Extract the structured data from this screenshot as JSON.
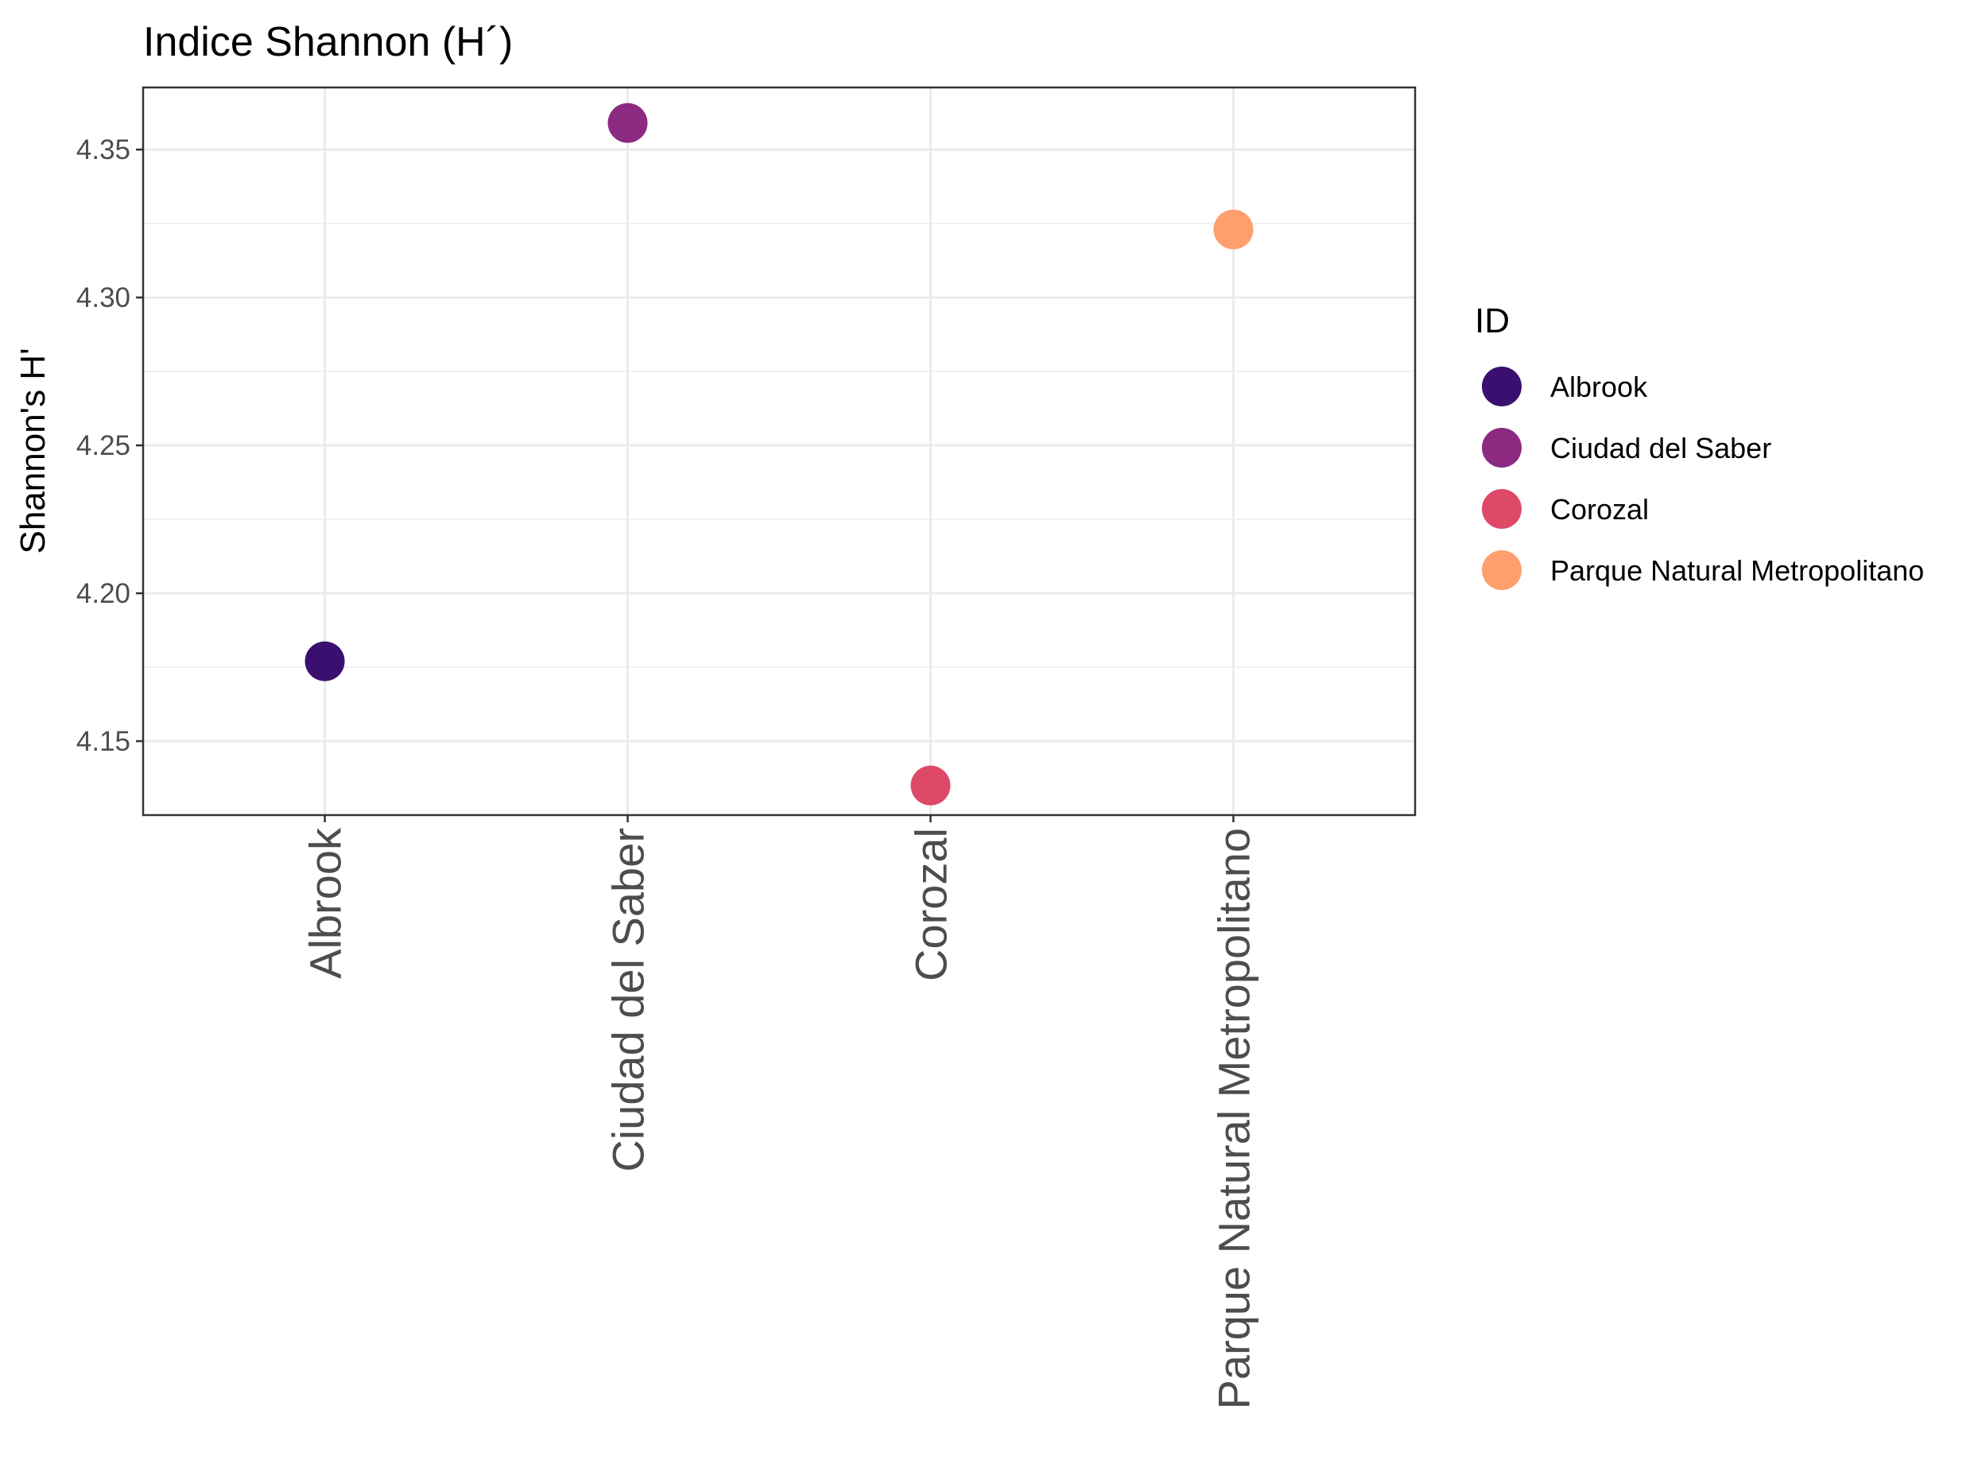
{
  "chart_data": {
    "type": "scatter",
    "title": "Indice Shannon (H´)",
    "xlabel": "",
    "ylabel": "Shannon's H'",
    "categories": [
      "Albrook",
      "Ciudad del Saber",
      "Corozal",
      "Parque Natural Metropolitano"
    ],
    "values": [
      4.177,
      4.359,
      4.135,
      4.323
    ],
    "colors": [
      "#3b0f70",
      "#8c2981",
      "#de4968",
      "#fe9f6d"
    ],
    "ylim": [
      4.125,
      4.371
    ],
    "yticks": [
      4.15,
      4.2,
      4.25,
      4.3,
      4.35
    ],
    "ytick_labels": [
      "4.15",
      "4.20",
      "4.25",
      "4.30",
      "4.35"
    ],
    "grid": true,
    "legend": {
      "title": "ID",
      "position": "right",
      "entries": [
        "Albrook",
        "Ciudad del Saber",
        "Corozal",
        "Parque Natural Metropolitano"
      ]
    },
    "theme": {
      "panel_border": "#333333",
      "grid_color": "#ebebeb",
      "background": "#ffffff"
    }
  }
}
